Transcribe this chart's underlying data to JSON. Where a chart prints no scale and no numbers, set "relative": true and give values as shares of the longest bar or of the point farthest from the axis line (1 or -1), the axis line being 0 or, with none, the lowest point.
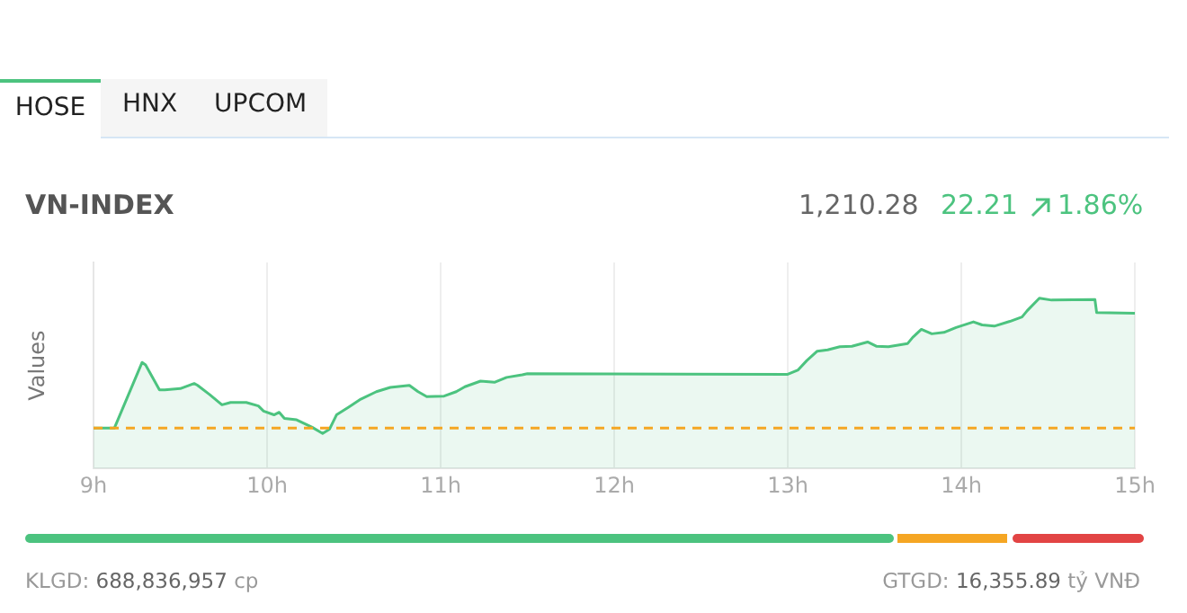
{
  "chart_data": {
    "type": "area",
    "title": "VN-INDEX",
    "ylabel": "Values",
    "relative": true,
    "x": [
      9.0,
      9.12,
      9.28,
      9.3,
      9.38,
      9.41,
      9.5,
      9.58,
      9.6,
      9.67,
      9.74,
      9.79,
      9.88,
      9.95,
      9.98,
      10.04,
      10.07,
      10.1,
      10.17,
      10.26,
      10.32,
      10.36,
      10.4,
      10.47,
      10.54,
      10.63,
      10.71,
      10.82,
      10.87,
      10.92,
      11.02,
      11.09,
      11.14,
      11.23,
      11.31,
      11.38,
      11.47,
      11.5,
      13.0,
      13.06,
      13.11,
      13.17,
      13.23,
      13.3,
      13.37,
      13.46,
      13.51,
      13.58,
      13.69,
      13.72,
      13.77,
      13.83,
      13.9,
      13.97,
      14.07,
      14.12,
      14.19,
      14.28,
      14.35,
      14.38,
      14.45,
      14.52,
      14.77,
      14.78,
      15.0
    ],
    "series": [
      {
        "color": "#4cc37f",
        "values": [
          0.237,
          0.237,
          0.623,
          0.608,
          0.462,
          0.462,
          0.469,
          0.499,
          0.488,
          0.433,
          0.374,
          0.388,
          0.388,
          0.367,
          0.337,
          0.315,
          0.33,
          0.294,
          0.286,
          0.242,
          0.206,
          0.231,
          0.315,
          0.36,
          0.407,
          0.451,
          0.476,
          0.488,
          0.451,
          0.422,
          0.425,
          0.451,
          0.48,
          0.513,
          0.506,
          0.535,
          0.55,
          0.557,
          0.553,
          0.579,
          0.634,
          0.689,
          0.697,
          0.715,
          0.718,
          0.743,
          0.718,
          0.715,
          0.733,
          0.77,
          0.817,
          0.791,
          0.799,
          0.828,
          0.861,
          0.843,
          0.836,
          0.864,
          0.89,
          0.927,
          1.0,
          0.989,
          0.992,
          0.916,
          0.912
        ]
      }
    ],
    "xlim": [
      9,
      15
    ],
    "xticks": [
      {
        "value": 9,
        "label": "9h"
      },
      {
        "value": 10,
        "label": "10h"
      },
      {
        "value": 11,
        "label": "11h"
      },
      {
        "value": 12,
        "label": "12h"
      },
      {
        "value": 13,
        "label": "13h"
      },
      {
        "value": 14,
        "label": "14h"
      },
      {
        "value": 15,
        "label": "15h"
      }
    ],
    "ref_lines": [
      {
        "axis": "y",
        "value": 0.237,
        "color": "#f5a623",
        "line_style": "dashed"
      }
    ],
    "grid": "x",
    "legend": false,
    "marker": "none",
    "line_style": "solid",
    "annotations": [
      "HOSE",
      "HNX",
      "UPCOM",
      "1,210.28",
      "22.21",
      "1.86%",
      "KLGD:",
      "688,836,957",
      "cp",
      "GTGD:",
      "16,355.89",
      "tỷ VNĐ"
    ]
  }
}
